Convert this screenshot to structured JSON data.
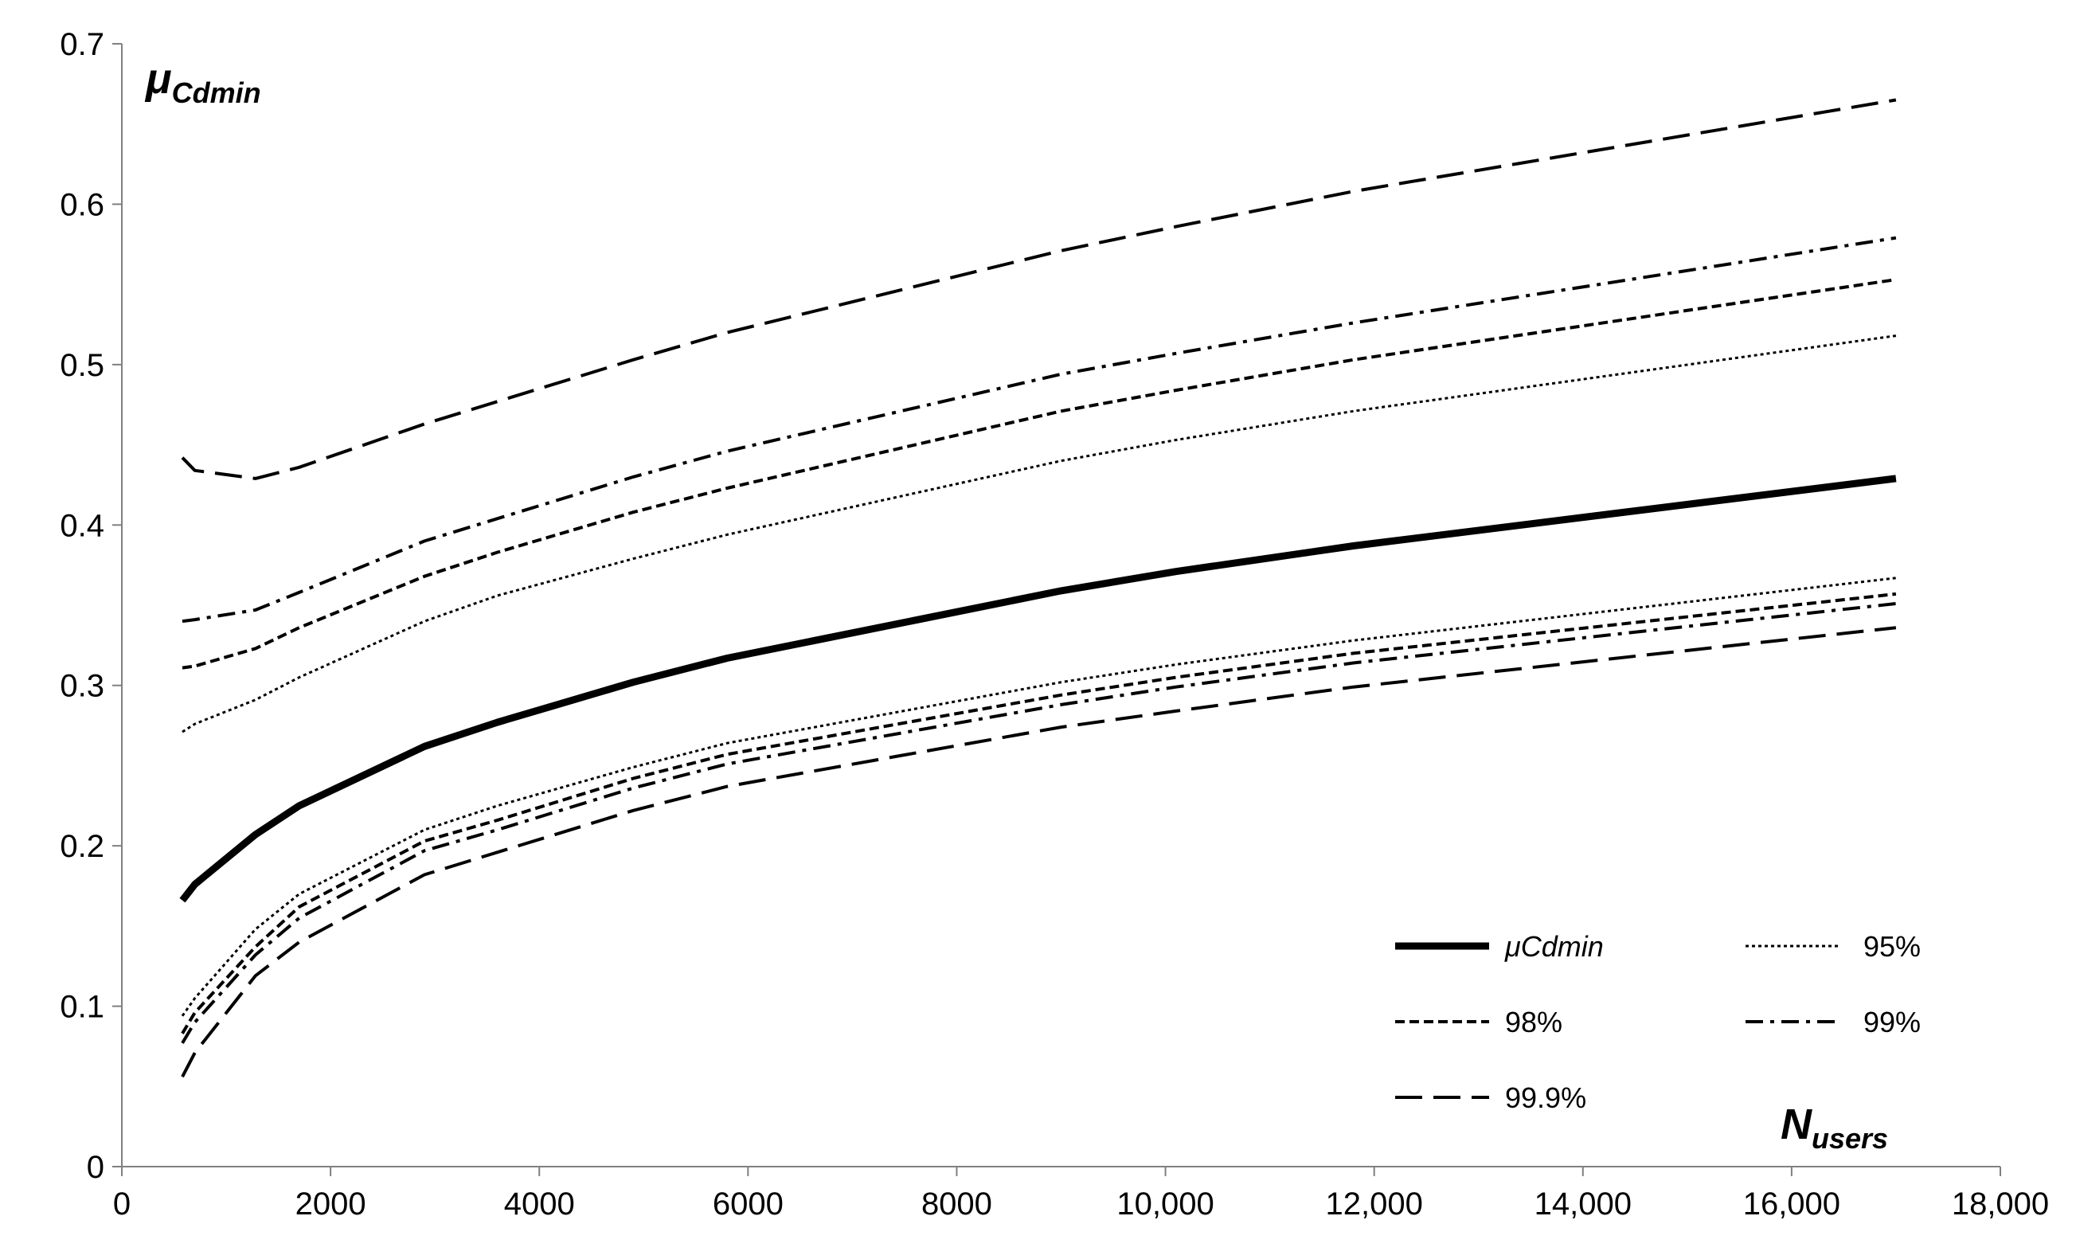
{
  "chart_data": {
    "type": "line",
    "ylabel_main": "μ",
    "ylabel_sub": "Cdmin",
    "xlabel_main": "N",
    "xlabel_sub": "users",
    "xlim": [
      0,
      18000
    ],
    "ylim": [
      0,
      0.7
    ],
    "x_ticks": [
      0,
      2000,
      4000,
      6000,
      8000,
      10000,
      12000,
      14000,
      16000,
      18000
    ],
    "x_tick_labels": [
      "0",
      "2000",
      "4000",
      "6000",
      "8000",
      "10,000",
      "12,000",
      "14,000",
      "16,000",
      "18,000"
    ],
    "y_ticks": [
      0,
      0.1,
      0.2,
      0.3,
      0.4,
      0.5,
      0.6,
      0.7
    ],
    "y_tick_labels": [
      "0",
      "0.1",
      "0.2",
      "0.3",
      "0.4",
      "0.5",
      "0.6",
      "0.7"
    ],
    "grid": false,
    "legend_position": "bottom-right",
    "x": [
      580,
      700,
      1280,
      1700,
      2900,
      3600,
      4900,
      5800,
      9000,
      10100,
      11800,
      17000
    ],
    "series": [
      {
        "name": "μCdmin",
        "style": "solid-thick",
        "values": [
          0.166,
          0.176,
          0.207,
          0.225,
          0.262,
          0.277,
          0.302,
          0.317,
          0.359,
          0.371,
          0.387,
          0.429
        ]
      },
      {
        "name": "95%",
        "style": "dotted",
        "upper": [
          0.271,
          0.276,
          0.291,
          0.305,
          0.34,
          0.356,
          0.379,
          0.394,
          0.44,
          0.453,
          0.471,
          0.518
        ],
        "lower": [
          0.094,
          0.105,
          0.148,
          0.17,
          0.21,
          0.225,
          0.249,
          0.264,
          0.302,
          0.313,
          0.328,
          0.367
        ]
      },
      {
        "name": "98%",
        "style": "short-dash",
        "upper": [
          0.311,
          0.312,
          0.323,
          0.336,
          0.368,
          0.383,
          0.408,
          0.423,
          0.471,
          0.484,
          0.503,
          0.553
        ],
        "lower": [
          0.083,
          0.096,
          0.137,
          0.162,
          0.203,
          0.216,
          0.242,
          0.257,
          0.294,
          0.305,
          0.32,
          0.357
        ]
      },
      {
        "name": "99%",
        "style": "dash-dot",
        "upper": [
          0.34,
          0.341,
          0.347,
          0.358,
          0.39,
          0.404,
          0.43,
          0.446,
          0.494,
          0.507,
          0.526,
          0.579
        ],
        "lower": [
          0.077,
          0.09,
          0.132,
          0.155,
          0.197,
          0.21,
          0.236,
          0.251,
          0.288,
          0.299,
          0.314,
          0.351
        ]
      },
      {
        "name": "99.9%",
        "style": "long-dash",
        "upper": [
          0.442,
          0.434,
          0.429,
          0.436,
          0.463,
          0.477,
          0.503,
          0.52,
          0.571,
          0.586,
          0.608,
          0.665
        ],
        "lower": [
          0.056,
          0.071,
          0.119,
          0.14,
          0.182,
          0.196,
          0.222,
          0.237,
          0.274,
          0.284,
          0.299,
          0.336
        ]
      }
    ]
  }
}
